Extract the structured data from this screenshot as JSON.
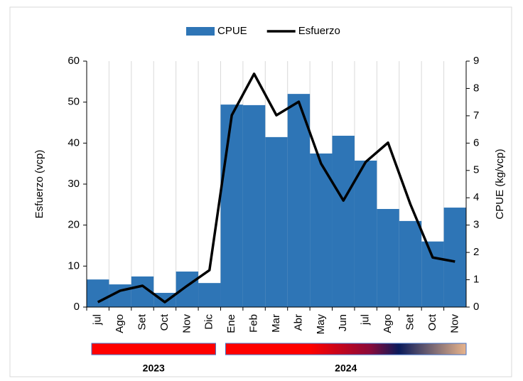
{
  "chart_data": {
    "type": "bar-line",
    "categories": [
      "jul",
      "Ago",
      "Set",
      "Oct",
      "Nov",
      "Dic",
      "Ene",
      "Feb",
      "Mar",
      "Abr",
      "May",
      "Jun",
      "jul",
      "Ago",
      "Set",
      "Oct",
      "Nov"
    ],
    "series": [
      {
        "name": "CPUE",
        "type": "bar",
        "axis": "y2",
        "color": "#2e75b6",
        "values": [
          1.01,
          0.83,
          1.12,
          0.52,
          1.3,
          0.88,
          7.41,
          7.39,
          6.22,
          7.8,
          5.62,
          6.27,
          5.36,
          3.59,
          3.15,
          2.4,
          3.64
        ]
      },
      {
        "name": "Esfuerzo",
        "type": "line",
        "axis": "y",
        "color": "#000000",
        "values": [
          1.2,
          4.0,
          5.2,
          1.2,
          5.2,
          9.0,
          46.8,
          56.9,
          46.8,
          50.1,
          35.0,
          26.0,
          35.4,
          40.1,
          25.1,
          12.1,
          11.1
        ]
      }
    ],
    "ylabel": "Esfuerzo (vcp)",
    "y2label": "CPUE (kg/vcp)",
    "ylim": [
      0,
      60
    ],
    "yticks": [
      0,
      10,
      20,
      30,
      40,
      50,
      60
    ],
    "y2lim": [
      0,
      9
    ],
    "y2ticks": [
      0,
      1,
      2,
      3,
      4,
      5,
      6,
      7,
      8,
      9
    ],
    "legend": "top",
    "periods": [
      {
        "label": "2023",
        "start": 0,
        "end": 5
      },
      {
        "label": "2024",
        "start": 6,
        "end": 16
      }
    ]
  }
}
